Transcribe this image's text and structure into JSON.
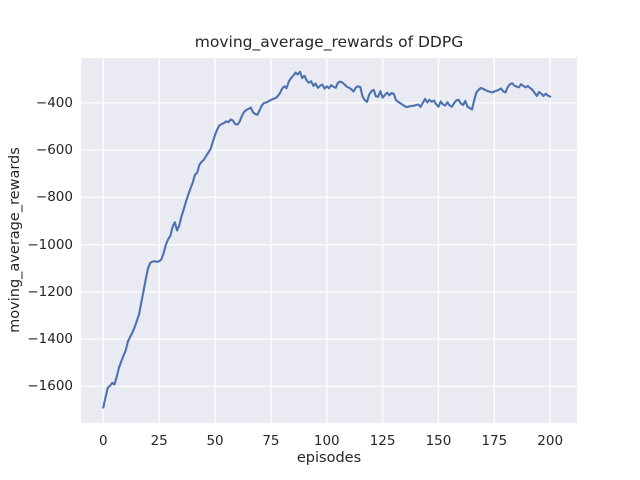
{
  "colors": {
    "figure_background": "#ffffff",
    "plot_background": "#eaeaf2",
    "gridline": "#ffffff",
    "line": "#4c72b0",
    "text": "#262626"
  },
  "chart_data": {
    "type": "line",
    "title": "moving_average_rewards of DDPG",
    "xlabel": "episodes",
    "ylabel": "moving_average_rewards",
    "xlim": [
      -10,
      212
    ],
    "ylim": [
      -1755,
      -210
    ],
    "xticks": [
      0,
      25,
      50,
      75,
      100,
      125,
      150,
      175,
      200
    ],
    "yticks": [
      -400,
      -600,
      -800,
      -1000,
      -1200,
      -1400,
      -1600
    ],
    "grid": true,
    "legend_position": "none",
    "series": [
      {
        "name": "moving_average_rewards",
        "x_start": 0,
        "x_step": 1,
        "values": [
          -1690,
          -1645,
          -1605,
          -1598,
          -1585,
          -1592,
          -1560,
          -1520,
          -1495,
          -1470,
          -1448,
          -1410,
          -1390,
          -1372,
          -1350,
          -1322,
          -1295,
          -1245,
          -1195,
          -1145,
          -1100,
          -1077,
          -1072,
          -1070,
          -1073,
          -1070,
          -1062,
          -1035,
          -1000,
          -978,
          -962,
          -925,
          -905,
          -940,
          -918,
          -880,
          -850,
          -818,
          -790,
          -762,
          -738,
          -705,
          -695,
          -662,
          -650,
          -640,
          -625,
          -610,
          -595,
          -565,
          -535,
          -512,
          -495,
          -490,
          -485,
          -478,
          -482,
          -470,
          -475,
          -490,
          -492,
          -480,
          -455,
          -438,
          -430,
          -425,
          -420,
          -440,
          -448,
          -450,
          -430,
          -410,
          -400,
          -398,
          -393,
          -388,
          -383,
          -380,
          -372,
          -360,
          -340,
          -330,
          -338,
          -310,
          -295,
          -285,
          -272,
          -280,
          -268,
          -295,
          -285,
          -305,
          -315,
          -308,
          -328,
          -318,
          -336,
          -328,
          -322,
          -340,
          -330,
          -338,
          -325,
          -332,
          -336,
          -315,
          -310,
          -314,
          -322,
          -332,
          -336,
          -342,
          -352,
          -335,
          -330,
          -333,
          -372,
          -388,
          -396,
          -365,
          -350,
          -345,
          -372,
          -374,
          -350,
          -378,
          -366,
          -357,
          -368,
          -358,
          -362,
          -388,
          -396,
          -402,
          -408,
          -415,
          -418,
          -415,
          -413,
          -412,
          -409,
          -407,
          -417,
          -400,
          -383,
          -398,
          -387,
          -396,
          -390,
          -406,
          -416,
          -394,
          -406,
          -411,
          -397,
          -411,
          -416,
          -401,
          -389,
          -387,
          -402,
          -409,
          -391,
          -416,
          -422,
          -428,
          -388,
          -355,
          -344,
          -337,
          -341,
          -346,
          -350,
          -353,
          -356,
          -352,
          -349,
          -344,
          -339,
          -351,
          -356,
          -333,
          -321,
          -317,
          -327,
          -331,
          -334,
          -321,
          -329,
          -334,
          -329,
          -337,
          -344,
          -357,
          -371,
          -354,
          -361,
          -371,
          -361,
          -369,
          -374
        ]
      }
    ]
  }
}
